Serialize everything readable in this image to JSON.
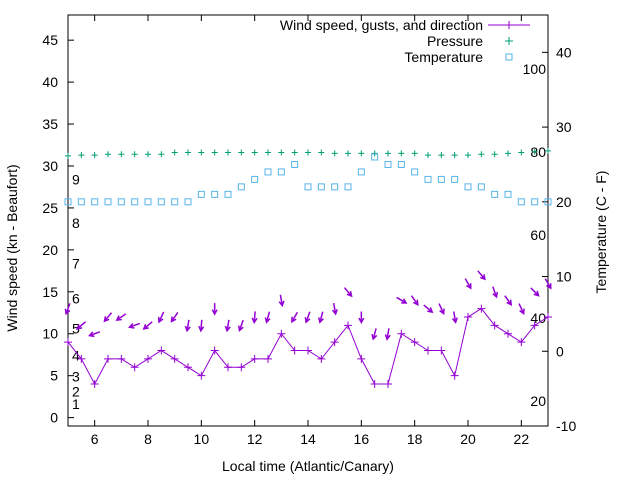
{
  "chart_data": {
    "type": "line",
    "xlabel": "Local time (Atlantic/Canary)",
    "ylabel": "Wind speed (kn - Beaufort)",
    "y2label": "Temperature (C - F)",
    "xlim": [
      5,
      23
    ],
    "ylim": [
      -1,
      48
    ],
    "y2lim": [
      -10,
      45
    ],
    "xticks": [
      "6",
      "8",
      "10",
      "12",
      "14",
      "16",
      "18",
      "20",
      "22"
    ],
    "yticks": [
      "0",
      "5",
      "10",
      "15",
      "20",
      "25",
      "30",
      "35",
      "40",
      "45"
    ],
    "y2ticks": [
      "-10",
      "0",
      "10",
      "20",
      "30",
      "40"
    ],
    "beaufort_labels": [
      "1",
      "2",
      "3",
      "4",
      "5",
      "6",
      "7",
      "8",
      "9"
    ],
    "fahrenheit_labels": [
      "20",
      "40",
      "60",
      "80",
      "100"
    ],
    "legend_position": "top-right",
    "series": [
      {
        "name": "Wind speed, gusts, and direction",
        "color": "#9400d3",
        "x": [
          5,
          5.5,
          6,
          6.5,
          7,
          7.5,
          8,
          8.5,
          9,
          9.5,
          10,
          10.5,
          11,
          11.5,
          12,
          12.5,
          13,
          13.5,
          14,
          14.5,
          15,
          15.5,
          16,
          16.5,
          17,
          17.5,
          18,
          18.5,
          19,
          19.5,
          20,
          20.5,
          21,
          21.5,
          22,
          22.5,
          23
        ],
        "values": [
          9,
          7,
          4,
          7,
          7,
          6,
          7,
          8,
          7,
          6,
          5,
          8,
          6,
          6,
          7,
          7,
          10,
          8,
          8,
          7,
          9,
          11,
          7,
          4,
          4,
          10,
          9,
          8,
          8,
          5,
          12,
          13,
          11,
          10,
          9,
          11,
          12
        ],
        "gusts": [
          13,
          11,
          10,
          12,
          12,
          11,
          11,
          12,
          12,
          11,
          11,
          13,
          11,
          11,
          12,
          12,
          14,
          12,
          12,
          12,
          13,
          15,
          12,
          10,
          10,
          14,
          14,
          13,
          13,
          12,
          16,
          17,
          15,
          14,
          13,
          15,
          16
        ]
      },
      {
        "name": "Pressure",
        "color": "#009e73",
        "x": [
          5,
          5.5,
          6,
          6.5,
          7,
          7.5,
          8,
          8.5,
          9,
          9.5,
          10,
          10.5,
          11,
          11.5,
          12,
          12.5,
          13,
          13.5,
          14,
          14.5,
          15,
          15.5,
          16,
          16.5,
          17,
          17.5,
          18,
          18.5,
          19,
          19.5,
          20,
          20.5,
          21,
          21.5,
          22,
          22.5,
          23
        ],
        "values": [
          31.2,
          31.3,
          31.3,
          31.4,
          31.4,
          31.4,
          31.4,
          31.4,
          31.6,
          31.6,
          31.6,
          31.6,
          31.6,
          31.6,
          31.6,
          31.6,
          31.6,
          31.6,
          31.6,
          31.6,
          31.5,
          31.5,
          31.5,
          31.5,
          31.5,
          31.5,
          31.5,
          31.3,
          31.3,
          31.3,
          31.3,
          31.4,
          31.4,
          31.5,
          31.6,
          31.7,
          31.8
        ]
      },
      {
        "name": "Temperature",
        "color": "#56b4e9",
        "x": [
          5,
          5.5,
          6,
          6.5,
          7,
          7.5,
          8,
          8.5,
          9,
          9.5,
          10,
          10.5,
          11,
          11.5,
          12,
          12.5,
          13,
          13.5,
          14,
          14.5,
          15,
          15.5,
          16,
          16.5,
          17,
          17.5,
          18,
          18.5,
          19,
          19.5,
          20,
          20.5,
          21,
          21.5,
          22,
          22.5,
          23
        ],
        "values": [
          20,
          20,
          20,
          20,
          20,
          20,
          20,
          20,
          20,
          20,
          21,
          21,
          21,
          22,
          23,
          24,
          24,
          25,
          22,
          22,
          22,
          22,
          24,
          26,
          25,
          25,
          24,
          23,
          23,
          23,
          22,
          22,
          21,
          21,
          20,
          20,
          20
        ]
      }
    ]
  }
}
